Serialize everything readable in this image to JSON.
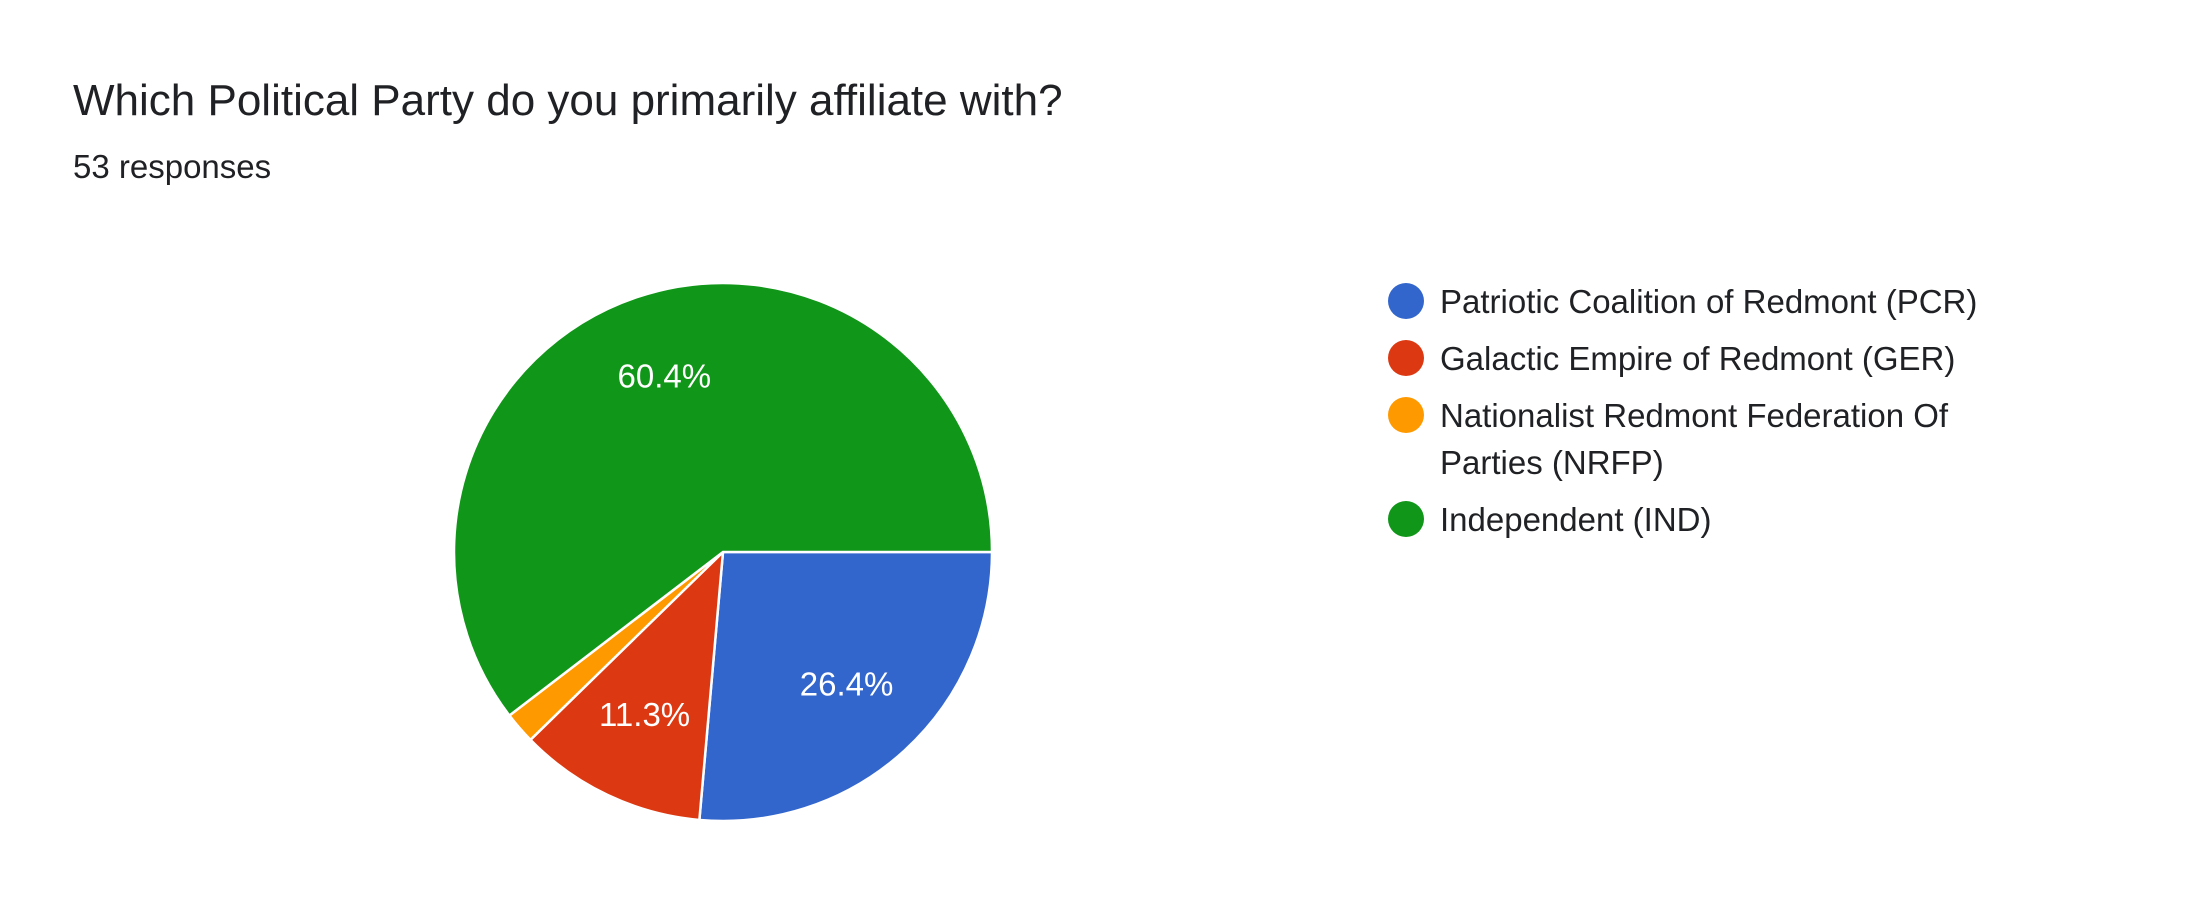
{
  "chart_data": {
    "type": "pie",
    "title": "Which Political Party do you primarily affiliate with?",
    "subtitle": "53 responses",
    "categories": [
      "Patriotic Coalition of Redmont (PCR)",
      "Galactic Empire of Redmont (GER)",
      "Nationalist Redmont Federation Of Parties (NRFP)",
      "Independent (IND)"
    ],
    "values": [
      26.4,
      11.3,
      1.9,
      60.4
    ],
    "value_labels": [
      "26.4%",
      "11.3%",
      null,
      "60.4%"
    ],
    "colors": [
      "#3366cc",
      "#dc3912",
      "#ff9900",
      "#109618"
    ]
  }
}
